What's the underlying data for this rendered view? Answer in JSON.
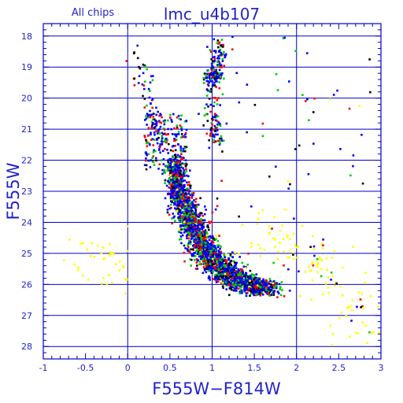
{
  "chart_data": {
    "type": "scatter",
    "title": "lmc_u4b107",
    "subtitle": "All chips",
    "xlabel": "F555W−F814W",
    "ylabel": "F555W",
    "xlim": [
      -1,
      3
    ],
    "ylim": [
      28.4,
      17.6
    ],
    "y_inverted": true,
    "grid": true,
    "x_ticks": [
      -1,
      -0.5,
      0,
      0.5,
      1,
      1.5,
      2,
      2.5,
      3
    ],
    "x_tick_labels": [
      "-1",
      "-0.5",
      "0",
      "0.5",
      "1",
      "1.5",
      "2",
      "2.5",
      "3"
    ],
    "y_ticks": [
      18,
      19,
      20,
      21,
      22,
      23,
      24,
      25,
      26,
      27,
      28
    ],
    "y_tick_labels": [
      "18",
      "19",
      "20",
      "21",
      "22",
      "23",
      "24",
      "25",
      "26",
      "27",
      "28"
    ],
    "series_colors": [
      "#0000ff",
      "#00cc00",
      "#ff0000",
      "#000000",
      "#ffff00"
    ],
    "features": {
      "main_sequence": [
        [
          0.55,
          22.0
        ],
        [
          0.6,
          23.0
        ],
        [
          0.75,
          24.0
        ],
        [
          0.95,
          25.0
        ],
        [
          1.25,
          25.8
        ],
        [
          1.65,
          26.2
        ]
      ],
      "red_clump": [
        1.0,
        19.3
      ],
      "red_giant_branch": [
        [
          1.05,
          21.5
        ],
        [
          1.0,
          20.5
        ],
        [
          1.05,
          19.0
        ],
        [
          1.1,
          18.2
        ]
      ],
      "blue_loop": [
        [
          0.1,
          18.6
        ],
        [
          0.3,
          20.5
        ],
        [
          0.4,
          21.3
        ]
      ],
      "faint_red_tail": [
        [
          1.6,
          24.2
        ],
        [
          2.3,
          25.5
        ],
        [
          2.9,
          27.5
        ]
      ],
      "faint_blue_tail": [
        [
          -0.5,
          24.8
        ],
        [
          0.0,
          25.8
        ]
      ]
    }
  }
}
